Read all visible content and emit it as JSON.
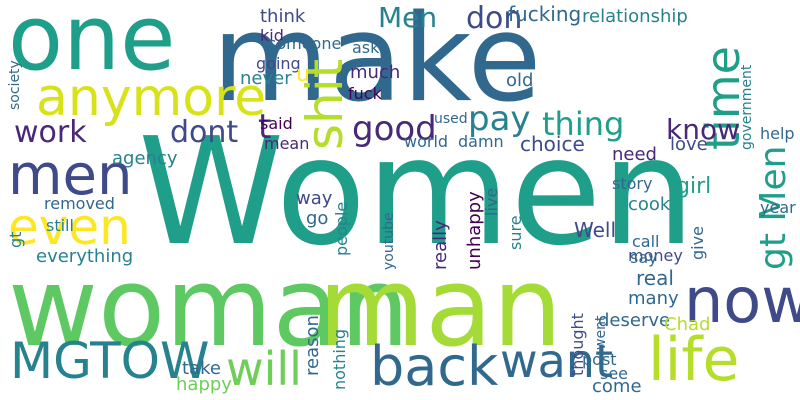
{
  "colors": {
    "background": "#ffffff",
    "palette": [
      "#440154",
      "#482878",
      "#3e4a89",
      "#31688e",
      "#26828e",
      "#1f9e89",
      "#35b779",
      "#6ece58",
      "#b5de2b",
      "#fde725"
    ]
  },
  "words": [
    "Women",
    "woman",
    "man",
    "make",
    "one",
    "anymore",
    "now",
    "back",
    "life",
    "want",
    "MGTOW",
    "will",
    "men",
    "even",
    "shit",
    "time",
    "Men",
    "gt Men",
    "don",
    "fucking",
    "relationship",
    "pay",
    "thing",
    "good",
    "work",
    "know",
    "dont",
    "t",
    "said",
    "mean",
    "think",
    "kid",
    "never",
    "someone",
    "ask",
    "going",
    "much",
    "fuck",
    "love",
    "help",
    "choice",
    "damn",
    "world",
    "need",
    "Well",
    "girl",
    "cook",
    "story",
    "sure",
    "unhappy",
    "really",
    "give",
    "money",
    "everything",
    "removed",
    "still",
    "gt",
    "way",
    "go",
    "people",
    "youtube",
    "live",
    "real",
    "many",
    "say",
    "call",
    "deserve",
    "Chad",
    "post",
    "see",
    "went",
    "come",
    "thought",
    "reason",
    "nothing",
    "take",
    "happy",
    "agency",
    "society",
    "year",
    "u",
    "old",
    "used",
    "government"
  ]
}
